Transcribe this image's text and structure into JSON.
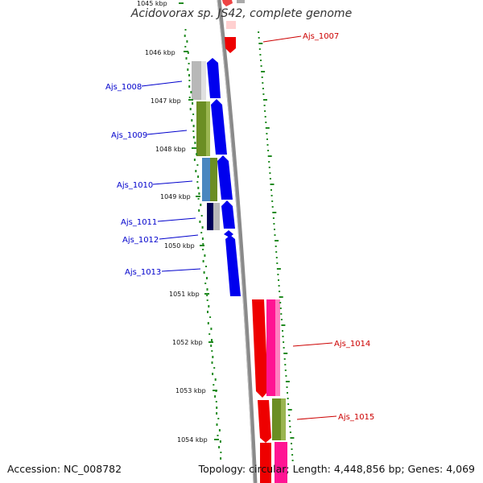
{
  "title": "Acidovorax sp. JS42, complete genome",
  "accession": "Accession: NC_008782",
  "summary": "Topology: circular; Length: 4,448,856 bp; Genes: 4,069",
  "ticks": [
    "1045 kbp",
    "1046 kbp",
    "1047 kbp",
    "1048 kbp",
    "1049 kbp",
    "1050 kbp",
    "1051 kbp",
    "1052 kbp",
    "1053 kbp",
    "1054 kbp"
  ],
  "genes_left": [
    "Ajs_1008",
    "Ajs_1009",
    "Ajs_1010",
    "Ajs_1011",
    "Ajs_1012",
    "Ajs_1013"
  ],
  "genes_right": [
    "Ajs_1007",
    "Ajs_1014",
    "Ajs_1015"
  ],
  "colors": {
    "forward_strand": "#0000ff",
    "reverse_strand": "#ff0000",
    "label_forward": "#0000cc",
    "label_reverse": "#cc0000",
    "magenta_track": "#ff1493",
    "olive_track": "#6b8e23",
    "grey_track": "#b0b0b0",
    "steelblue_track": "#4682b4",
    "navy_track": "#000066",
    "gc_tick": "#228b22",
    "backbone": "#808080"
  }
}
